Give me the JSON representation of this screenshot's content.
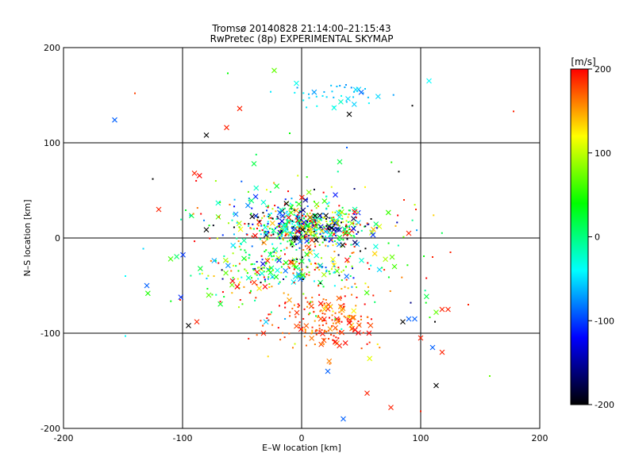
{
  "chart_data": {
    "type": "scatter",
    "title": "Tromsø 20140828 21:14:00–21:15:43",
    "subtitle": "RwPretec (8p) EXPERIMENTAL SKYMAP",
    "xlabel": "E–W location [km]",
    "ylabel": "N–S location [km]",
    "xlim": [
      -200,
      200
    ],
    "ylim": [
      -200,
      200
    ],
    "xticks": [
      "-200",
      "-100",
      "0",
      "100",
      "200"
    ],
    "yticks": [
      "-200",
      "-100",
      "0",
      "100",
      "200"
    ],
    "grid": true,
    "grid_lines_x": [
      -100,
      0,
      100
    ],
    "grid_lines_y": [
      -100,
      0,
      100
    ],
    "colorbar": {
      "label": "[m/s]",
      "range": [
        -200,
        200
      ],
      "ticks": [
        "-200",
        "-100",
        "0",
        "100",
        "200"
      ],
      "colormap": [
        "#000000",
        "#0000ff",
        "#00ffff",
        "#00ff00",
        "#ffff00",
        "#ff0000"
      ]
    },
    "marker_types": [
      "dot",
      "cross"
    ],
    "clusters": [
      {
        "x": 5,
        "y": 12,
        "sx": 28,
        "sy": 10,
        "n": 520,
        "v": 0,
        "vs": 140
      },
      {
        "x": 20,
        "y": -88,
        "sx": 22,
        "sy": 17,
        "n": 200,
        "v": 175,
        "vs": 25
      },
      {
        "x": -45,
        "y": -35,
        "sx": 28,
        "sy": 20,
        "n": 150,
        "v": 50,
        "vs": 90
      },
      {
        "x": 5,
        "y": -30,
        "sx": 30,
        "sy": 12,
        "n": 130,
        "v": 10,
        "vs": 150
      },
      {
        "x": 30,
        "y": 152,
        "sx": 22,
        "sy": 8,
        "n": 40,
        "v": -55,
        "vs": 12
      },
      {
        "x": -30,
        "y": 35,
        "sx": 45,
        "sy": 20,
        "n": 80,
        "v": 20,
        "vs": 160
      },
      {
        "x": 60,
        "y": -30,
        "sx": 35,
        "sy": 45,
        "n": 50,
        "v": 100,
        "vs": 110
      }
    ],
    "points": [
      {
        "x": -157,
        "y": 124,
        "v": -90,
        "m": "cross"
      },
      {
        "x": -140,
        "y": 152,
        "v": 180,
        "m": "dot"
      },
      {
        "x": -52,
        "y": 136,
        "v": 190,
        "m": "cross"
      },
      {
        "x": -63,
        "y": 116,
        "v": 190,
        "m": "cross"
      },
      {
        "x": -80,
        "y": 108,
        "v": -200,
        "m": "cross"
      },
      {
        "x": -62,
        "y": 173,
        "v": 40,
        "m": "dot"
      },
      {
        "x": -23,
        "y": 176,
        "v": 70,
        "m": "cross"
      },
      {
        "x": 40,
        "y": 130,
        "v": -200,
        "m": "cross"
      },
      {
        "x": 50,
        "y": 153,
        "v": -90,
        "m": "cross"
      },
      {
        "x": 93,
        "y": 139,
        "v": -200,
        "m": "dot"
      },
      {
        "x": 107,
        "y": 165,
        "v": -40,
        "m": "cross"
      },
      {
        "x": 178,
        "y": 133,
        "v": 190,
        "m": "dot"
      },
      {
        "x": 32,
        "y": 80,
        "v": 20,
        "m": "cross"
      },
      {
        "x": -40,
        "y": 78,
        "v": 20,
        "m": "cross"
      },
      {
        "x": -90,
        "y": 68,
        "v": 190,
        "m": "cross"
      },
      {
        "x": -125,
        "y": 62,
        "v": -200,
        "m": "dot"
      },
      {
        "x": -120,
        "y": 30,
        "v": 190,
        "m": "cross"
      },
      {
        "x": -110,
        "y": -22,
        "v": 60,
        "m": "cross"
      },
      {
        "x": -130,
        "y": -50,
        "v": -90,
        "m": "cross"
      },
      {
        "x": -95,
        "y": -92,
        "v": -200,
        "m": "cross"
      },
      {
        "x": -148,
        "y": -40,
        "v": -40,
        "m": "dot"
      },
      {
        "x": -148,
        "y": -103,
        "v": -40,
        "m": "dot"
      },
      {
        "x": -88,
        "y": -88,
        "v": 190,
        "m": "cross"
      },
      {
        "x": -32,
        "y": -100,
        "v": 190,
        "m": "cross"
      },
      {
        "x": 22,
        "y": -140,
        "v": -90,
        "m": "cross"
      },
      {
        "x": 35,
        "y": -190,
        "v": -90,
        "m": "cross"
      },
      {
        "x": 55,
        "y": -163,
        "v": 190,
        "m": "cross"
      },
      {
        "x": 75,
        "y": -178,
        "v": 190,
        "m": "cross"
      },
      {
        "x": 100,
        "y": -182,
        "v": 190,
        "m": "dot"
      },
      {
        "x": 113,
        "y": -155,
        "v": -200,
        "m": "cross"
      },
      {
        "x": 110,
        "y": -115,
        "v": -90,
        "m": "cross"
      },
      {
        "x": 118,
        "y": -75,
        "v": 190,
        "m": "cross"
      },
      {
        "x": 113,
        "y": -78,
        "v": 70,
        "m": "cross"
      },
      {
        "x": 123,
        "y": -75,
        "v": 190,
        "m": "cross"
      },
      {
        "x": 118,
        "y": -120,
        "v": 190,
        "m": "cross"
      },
      {
        "x": 90,
        "y": -85,
        "v": -90,
        "m": "cross"
      },
      {
        "x": 85,
        "y": -88,
        "v": -200,
        "m": "cross"
      },
      {
        "x": 95,
        "y": -85,
        "v": -90,
        "m": "cross"
      },
      {
        "x": 100,
        "y": -105,
        "v": 190,
        "m": "cross"
      },
      {
        "x": 112,
        "y": -88,
        "v": -200,
        "m": "dot"
      },
      {
        "x": 125,
        "y": -15,
        "v": 190,
        "m": "dot"
      },
      {
        "x": 110,
        "y": -20,
        "v": 190,
        "m": "dot"
      },
      {
        "x": 158,
        "y": -145,
        "v": 70,
        "m": "dot"
      },
      {
        "x": 78,
        "y": -30,
        "v": 60,
        "m": "cross"
      },
      {
        "x": 76,
        "y": -20,
        "v": 70,
        "m": "cross"
      },
      {
        "x": 90,
        "y": 5,
        "v": 190,
        "m": "cross"
      },
      {
        "x": 86,
        "y": 40,
        "v": 190,
        "m": "dot"
      },
      {
        "x": 96,
        "y": 30,
        "v": 190,
        "m": "dot"
      },
      {
        "x": 38,
        "y": 95,
        "v": -90,
        "m": "dot"
      },
      {
        "x": -10,
        "y": 110,
        "v": 40,
        "m": "dot"
      },
      {
        "x": -102,
        "y": -65,
        "v": 190,
        "m": "dot"
      },
      {
        "x": 140,
        "y": -70,
        "v": 190,
        "m": "dot"
      }
    ]
  }
}
